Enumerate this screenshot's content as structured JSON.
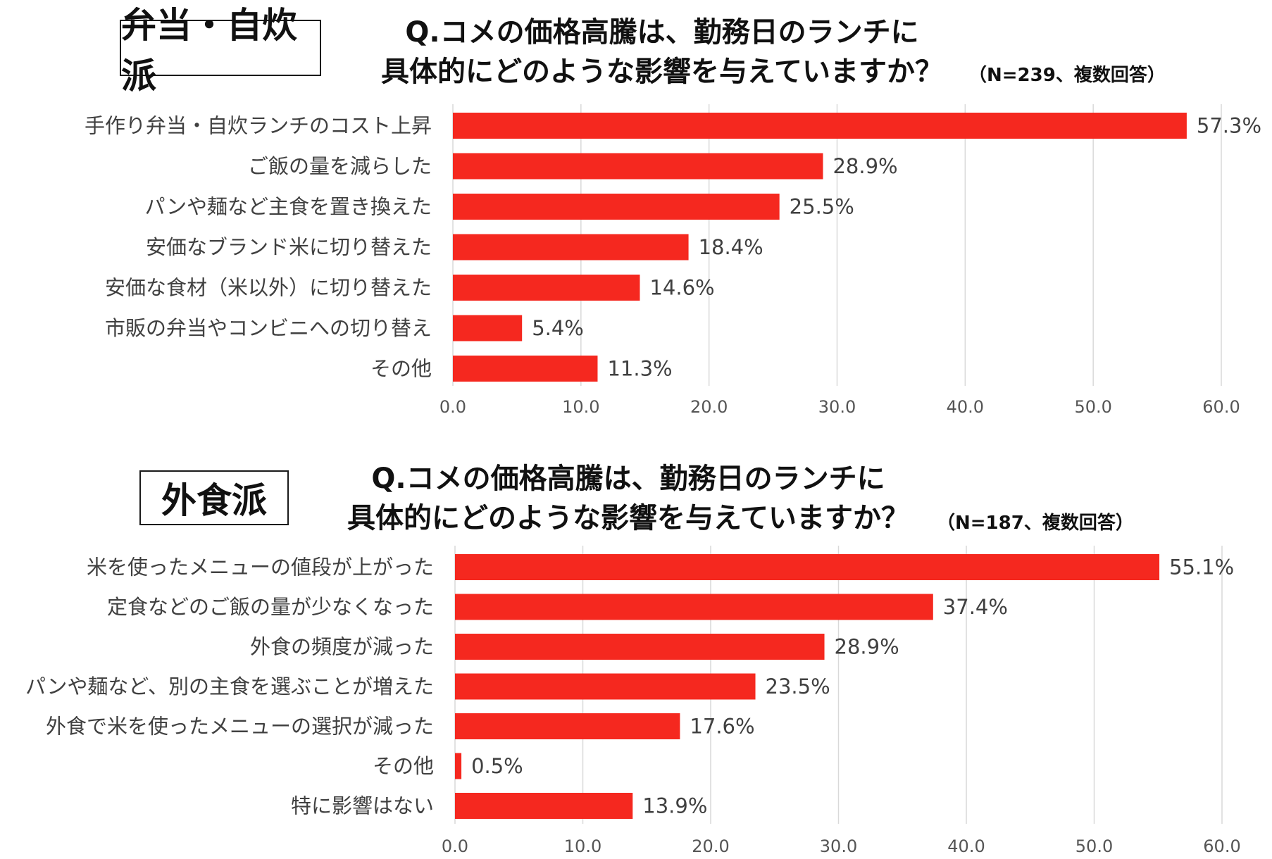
{
  "colors": {
    "bar": "#f5281f",
    "grid": "#d9d9d9",
    "text": "#404040"
  },
  "chart_data": [
    {
      "type": "bar",
      "orientation": "horizontal",
      "group_label": "弁当・自炊派",
      "title_line1": "Q.コメの価格高騰は、勤務日のランチに",
      "title_line2": "具体的にどのような影響を与えていますか？",
      "note": "（N=239、複数回答）",
      "categories": [
        "手作り弁当・自炊ランチのコスト上昇",
        "ご飯の量を減らした",
        "パンや麺など主食を置き換えた",
        "安価なブランド米に切り替えた",
        "安価な食材（米以外）に切り替えた",
        "市販の弁当やコンビニへの切り替え",
        "その他"
      ],
      "values": [
        57.3,
        28.9,
        25.5,
        18.4,
        14.6,
        5.4,
        11.3
      ],
      "value_labels": [
        "57.3%",
        "28.9%",
        "25.5%",
        "18.4%",
        "14.6%",
        "5.4%",
        "11.3%"
      ],
      "xlim": [
        0,
        60
      ],
      "ticks": [
        0,
        10,
        20,
        30,
        40,
        50,
        60
      ],
      "tick_labels": [
        "0.0",
        "10.0",
        "20.0",
        "30.0",
        "40.0",
        "50.0",
        "60.0"
      ],
      "grid": true
    },
    {
      "type": "bar",
      "orientation": "horizontal",
      "group_label": "外食派",
      "title_line1": "Q.コメの価格高騰は、勤務日のランチに",
      "title_line2": "具体的にどのような影響を与えていますか？",
      "note": "（N=187、複数回答）",
      "categories": [
        "米を使ったメニューの値段が上がった",
        "定食などのご飯の量が少なくなった",
        "外食の頻度が減った",
        "パンや麺など、別の主食を選ぶことが増えた",
        "外食で米を使ったメニューの選択が減った",
        "その他",
        "特に影響はない"
      ],
      "values": [
        55.1,
        37.4,
        28.9,
        23.5,
        17.6,
        0.5,
        13.9
      ],
      "value_labels": [
        "55.1%",
        "37.4%",
        "28.9%",
        "23.5%",
        "17.6%",
        "0.5%",
        "13.9%"
      ],
      "xlim": [
        0,
        60
      ],
      "ticks": [
        0,
        10,
        20,
        30,
        40,
        50,
        60
      ],
      "tick_labels": [
        "0.0",
        "10.0",
        "20.0",
        "30.0",
        "40.0",
        "50.0",
        "60.0"
      ],
      "grid": true
    }
  ]
}
